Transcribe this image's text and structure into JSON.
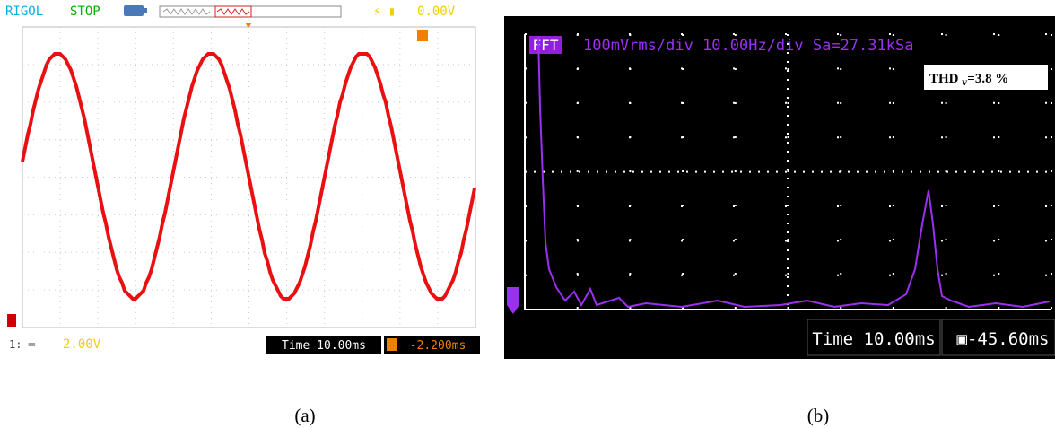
{
  "panel_a": {
    "brand": "RIGOL",
    "status": "STOP",
    "trigger_level": "0.00V",
    "channel_scale": "2.00V",
    "timebase": "Time 10.00ms",
    "trigger_offset": "-2.200ms",
    "caption": "(a)"
  },
  "panel_b": {
    "mode": "FFT",
    "settings": "100mVrms/div 10.00Hz/div Sa=27.31kSa",
    "thd_label": "THD",
    "thd_sub": "v",
    "thd_value": "=3.8 %",
    "timebase": "Time 10.00ms",
    "trigger_offset": "-45.60ms",
    "caption": "(b)"
  }
}
